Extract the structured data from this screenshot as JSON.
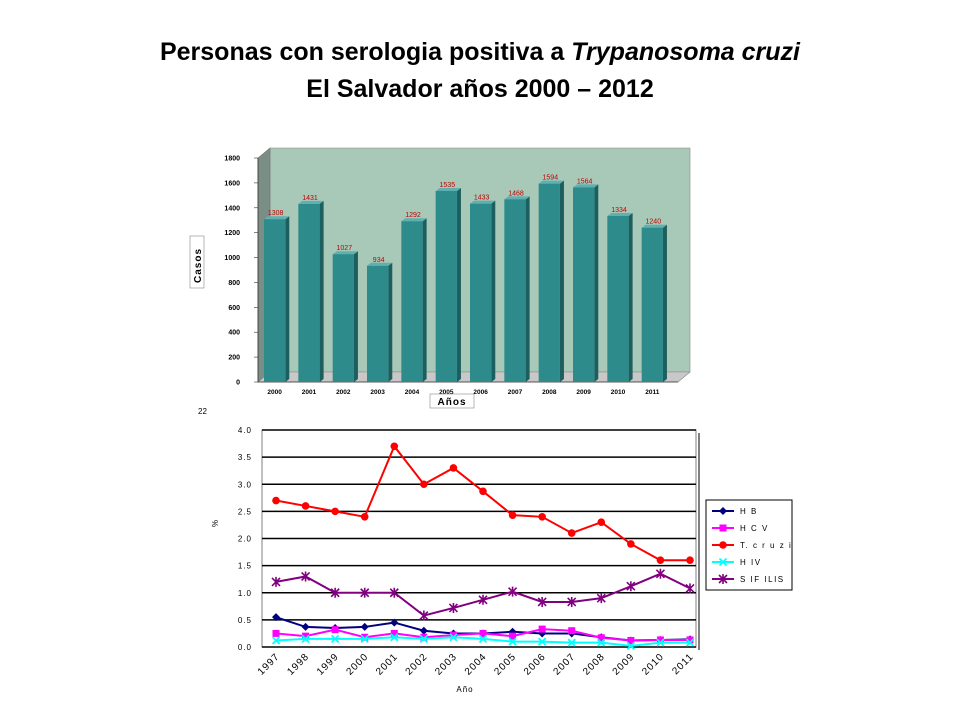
{
  "title": {
    "line1_prefix": "Personas con serologia positiva a ",
    "line1_italic": "Trypanosoma cruzi",
    "line2": "El Salvador años 2000 – 2012"
  },
  "chart_data": [
    {
      "type": "bar",
      "categories": [
        "2000",
        "2001",
        "2002",
        "2003",
        "2004",
        "2005",
        "2006",
        "2007",
        "2008",
        "2009",
        "2010",
        "2011"
      ],
      "values": [
        1308,
        1431,
        1027,
        934,
        1292,
        1535,
        1433,
        1468,
        1594,
        1564,
        1334,
        1240
      ],
      "ylabel": "Casos",
      "xlabel": "Años",
      "ylim": [
        0,
        1800
      ],
      "yticks": [
        "0",
        "200",
        "400",
        "600",
        "800",
        "1000",
        "1200",
        "1400",
        "1600",
        "1800"
      ],
      "colors": {
        "bar_front": "#2e8b8b",
        "bar_side": "#1d5f5f",
        "bar_top": "#5fb0b0",
        "wall": "#a9c9b8",
        "floor": "#c8c8c8",
        "label": "#c00000"
      }
    },
    {
      "type": "line",
      "categories": [
        "1997",
        "1998",
        "1999",
        "2000",
        "2001",
        "2002",
        "2003",
        "2004",
        "2005",
        "2006",
        "2007",
        "2008",
        "2009",
        "2010",
        "2011"
      ],
      "ylim": [
        0,
        4.0
      ],
      "yticks": [
        "0.0",
        "0.5",
        "1.0",
        "1.5",
        "2.0",
        "2.5",
        "3.0",
        "3.5",
        "4.0"
      ],
      "xlabel": "Año",
      "ylabel": "%",
      "fragment_text": "22",
      "series": [
        {
          "name": "H B",
          "color": "#000080",
          "marker": "diamond",
          "values": [
            0.55,
            0.37,
            0.35,
            0.37,
            0.45,
            0.3,
            0.25,
            0.25,
            0.28,
            0.25,
            0.25,
            0.18,
            0.12,
            0.13,
            0.14
          ]
        },
        {
          "name": "H C V",
          "color": "#ff00ff",
          "marker": "square",
          "values": [
            0.25,
            0.2,
            0.32,
            0.18,
            0.25,
            0.18,
            0.22,
            0.25,
            0.2,
            0.33,
            0.3,
            0.17,
            0.12,
            0.13,
            0.13
          ]
        },
        {
          "name": "T. c r u z i",
          "color": "#ff0000",
          "marker": "circle",
          "values": [
            2.7,
            2.6,
            2.5,
            2.4,
            3.7,
            3.0,
            3.3,
            2.87,
            2.43,
            2.4,
            2.1,
            2.3,
            1.9,
            1.6,
            1.6
          ]
        },
        {
          "name": "H IV",
          "color": "#00ffff",
          "marker": "x",
          "values": [
            0.12,
            0.15,
            0.15,
            0.15,
            0.18,
            0.15,
            0.18,
            0.15,
            0.1,
            0.1,
            0.08,
            0.08,
            0.02,
            0.08,
            0.08
          ]
        },
        {
          "name": "S IF ILIS",
          "color": "#800080",
          "marker": "star",
          "values": [
            1.2,
            1.3,
            1.0,
            1.0,
            1.0,
            0.58,
            0.72,
            0.87,
            1.02,
            0.83,
            0.83,
            0.9,
            1.12,
            1.35,
            1.08
          ]
        }
      ]
    }
  ]
}
